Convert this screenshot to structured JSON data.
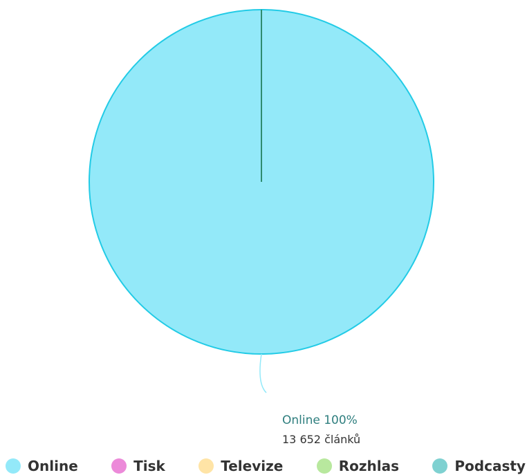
{
  "chart_data": {
    "type": "pie",
    "slices": [
      {
        "name": "Online",
        "value": 100,
        "percent_label": "Online 100%",
        "count_label": "13 652 článků",
        "color": "#93E9F9",
        "stroke": "#22CBE6"
      },
      {
        "name": "Tisk",
        "value": 0,
        "color": "#EC8AD9"
      },
      {
        "name": "Televize",
        "value": 0,
        "color": "#FFE4A6"
      },
      {
        "name": "Rozhlas",
        "value": 0,
        "color": "#B8E89E"
      },
      {
        "name": "Podcasty",
        "value": 0,
        "color": "#7FD1D1"
      }
    ],
    "legend_position": "bottom",
    "label_color": "#2E7E7E",
    "count_color": "#333333",
    "zero_slice_line_color": "#2E8B6E"
  },
  "legend": {
    "items": [
      {
        "label": "Online",
        "color": "#93E9F9"
      },
      {
        "label": "Tisk",
        "color": "#EC8AD9"
      },
      {
        "label": "Televize",
        "color": "#FFE4A6"
      },
      {
        "label": "Rozhlas",
        "color": "#B8E89E"
      },
      {
        "label": "Podcasty",
        "color": "#7FD1D1"
      }
    ]
  }
}
